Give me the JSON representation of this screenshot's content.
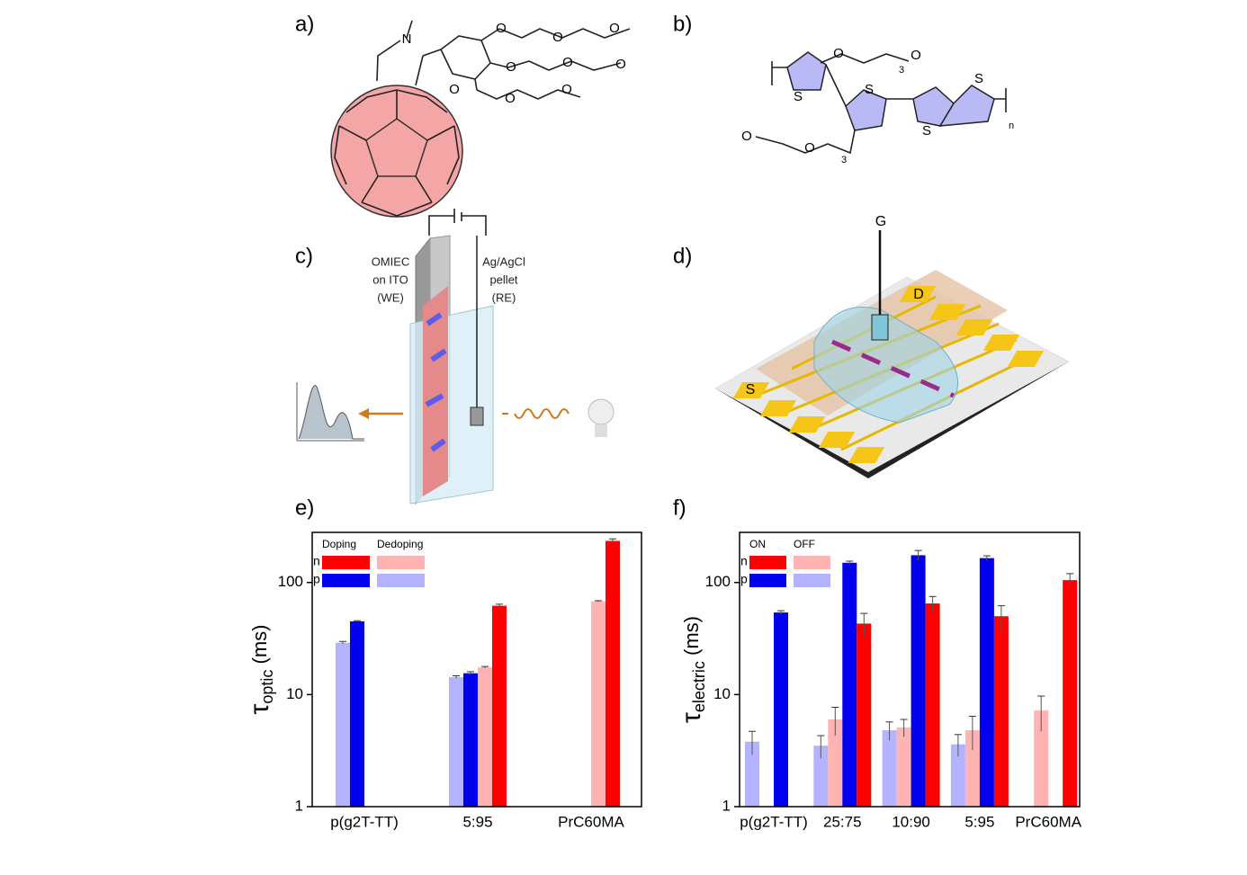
{
  "panels": {
    "a": "a)",
    "b": "b)",
    "c": "c)",
    "d": "d)"
  },
  "diagram_a": {
    "atoms": [
      "N",
      "O",
      "O",
      "O",
      "O",
      "O",
      "O",
      "O",
      "O",
      "O"
    ]
  },
  "diagram_b": {
    "atoms": [
      "S",
      "S",
      "S",
      "S",
      "O",
      "O",
      "O",
      "O"
    ],
    "subscripts": [
      "3",
      "3",
      "n"
    ]
  },
  "diagram_c": {
    "we_label": [
      "OMIEC",
      "on ITO",
      "(WE)"
    ],
    "re_label": [
      "Ag/AgCl",
      "pellet",
      "(RE)"
    ]
  },
  "diagram_d": {
    "gate": "G",
    "drain": "D",
    "source": "S"
  },
  "chart_data": [
    {
      "type": "bar",
      "panel": "e)",
      "log_y": true,
      "y_label": {
        "symbol": "τ",
        "sub": "optic",
        "unit": " (ms)"
      },
      "categories": [
        "p(g2T-TT)",
        "5:95",
        "PrC60MA"
      ],
      "legend": {
        "headers": [
          "Doping",
          "Dedoping"
        ],
        "rows": [
          "n",
          "p"
        ]
      },
      "series": [
        {
          "color": "#ff0000",
          "values": [
            null,
            62,
            235
          ],
          "errors": [
            null,
            2,
            10
          ]
        },
        {
          "color": "#ffb3b3",
          "values": [
            null,
            17.5,
            68
          ],
          "errors": [
            null,
            0.3,
            0.8
          ]
        },
        {
          "color": "#0000ee",
          "values": [
            45,
            15.5,
            null
          ],
          "errors": [
            0.6,
            0.5,
            null
          ]
        },
        {
          "color": "#b3b3ff",
          "values": [
            29,
            14.3,
            null
          ],
          "errors": [
            0.8,
            0.4,
            null
          ]
        }
      ],
      "ylim": [
        1,
        280
      ],
      "yticks": [
        1,
        10,
        100
      ]
    },
    {
      "type": "bar",
      "panel": "f)",
      "log_y": true,
      "y_label": {
        "symbol": "τ",
        "sub": "electric",
        "unit": " (ms)"
      },
      "categories": [
        "p(g2T-TT)",
        "25:75",
        "10:90",
        "5:95",
        "PrC60MA"
      ],
      "legend": {
        "headers": [
          "ON",
          "OFF"
        ],
        "rows": [
          "n",
          "p"
        ]
      },
      "series": [
        {
          "color": "#ff0000",
          "values": [
            null,
            43,
            65,
            50,
            105
          ],
          "errors": [
            null,
            10,
            10,
            12,
            15
          ]
        },
        {
          "color": "#ffb3b3",
          "values": [
            null,
            6,
            5.1,
            4.8,
            7.2
          ],
          "errors": [
            null,
            1.7,
            0.9,
            1.6,
            2.5
          ]
        },
        {
          "color": "#0000ee",
          "values": [
            54,
            150,
            175,
            165,
            null
          ],
          "errors": [
            2,
            5,
            18,
            8,
            null
          ]
        },
        {
          "color": "#b3b3ff",
          "values": [
            3.8,
            3.5,
            4.8,
            3.6,
            null
          ],
          "errors": [
            0.9,
            0.8,
            0.9,
            0.8,
            null
          ]
        }
      ],
      "ylim": [
        1,
        280
      ],
      "yticks": [
        1,
        10,
        100
      ]
    }
  ]
}
